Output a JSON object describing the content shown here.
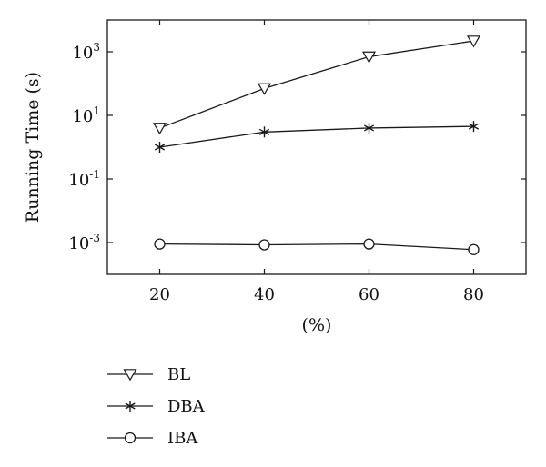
{
  "chart_data": {
    "type": "line",
    "title": "",
    "xlabel": "(%)",
    "ylabel": "Running Time (s)",
    "x": [
      20,
      40,
      60,
      80
    ],
    "xlim": [
      10,
      90
    ],
    "xticks": [
      "20",
      "40",
      "60",
      "80"
    ],
    "yscale": "log",
    "ylim": [
      0.0001,
      10000
    ],
    "yticks": [
      {
        "value": 0.001,
        "base": "10",
        "exp": "-3"
      },
      {
        "value": 0.1,
        "base": "10",
        "exp": "-1"
      },
      {
        "value": 10,
        "base": "10",
        "exp": "1"
      },
      {
        "value": 1000,
        "base": "10",
        "exp": "3"
      }
    ],
    "grid": false,
    "legend_position": "below",
    "color": "#1a1a1a",
    "series": [
      {
        "name": "BL",
        "marker": "triangle-down",
        "values": [
          4,
          70,
          700,
          2200
        ]
      },
      {
        "name": "DBA",
        "marker": "asterisk",
        "values": [
          1,
          3,
          4,
          4.5
        ]
      },
      {
        "name": "IBA",
        "marker": "circle",
        "values": [
          0.0009,
          0.00085,
          0.0009,
          0.0006
        ]
      }
    ]
  }
}
